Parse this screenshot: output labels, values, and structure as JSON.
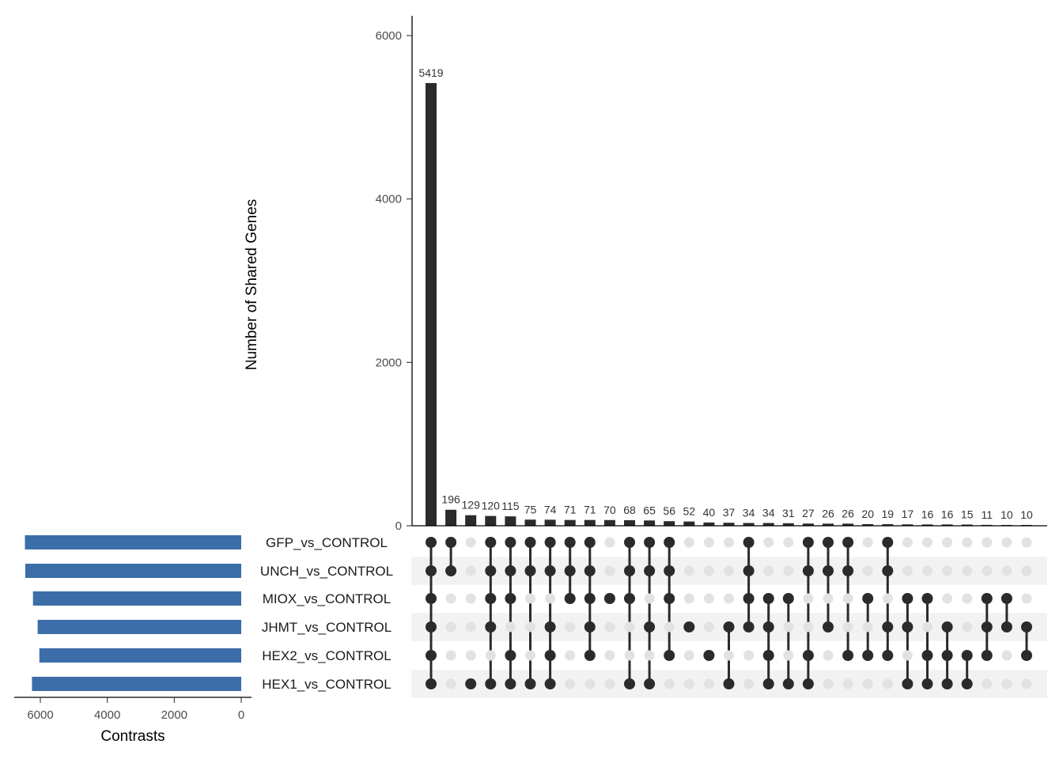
{
  "chart_data": {
    "type": "upset",
    "ylabel": "Number of Shared Genes",
    "xlabel_sets": "Contrasts",
    "ylim": [
      0,
      6000
    ],
    "y_ticks": [
      0,
      2000,
      4000,
      6000
    ],
    "set_size_ticks": [
      6000,
      4000,
      2000,
      0
    ],
    "set_size_lim": [
      0,
      6600
    ],
    "sets": [
      "GFP_vs_CONTROL",
      "UNCH_vs_CONTROL",
      "MIOX_vs_CONTROL",
      "JHMT_vs_CONTROL",
      "HEX2_vs_CONTROL",
      "HEX1_vs_CONTROL"
    ],
    "set_sizes": [
      6460,
      6450,
      6220,
      6080,
      6030,
      6250
    ],
    "intersections": [
      {
        "value": 5419,
        "members": [
          0,
          1,
          2,
          3,
          4,
          5
        ]
      },
      {
        "value": 196,
        "members": [
          0,
          1
        ]
      },
      {
        "value": 129,
        "members": [
          5
        ]
      },
      {
        "value": 120,
        "members": [
          0,
          1,
          2,
          3,
          5
        ]
      },
      {
        "value": 115,
        "members": [
          0,
          1,
          2,
          4,
          5
        ]
      },
      {
        "value": 75,
        "members": [
          0,
          1,
          5
        ]
      },
      {
        "value": 74,
        "members": [
          0,
          1,
          3,
          4,
          5
        ]
      },
      {
        "value": 71,
        "members": [
          0,
          1,
          2
        ]
      },
      {
        "value": 71,
        "members": [
          0,
          1,
          2,
          3,
          4
        ]
      },
      {
        "value": 70,
        "members": [
          2
        ]
      },
      {
        "value": 68,
        "members": [
          0,
          1,
          2,
          5
        ]
      },
      {
        "value": 65,
        "members": [
          0,
          1,
          3,
          5
        ]
      },
      {
        "value": 56,
        "members": [
          0,
          1,
          2,
          4
        ]
      },
      {
        "value": 52,
        "members": [
          3
        ]
      },
      {
        "value": 40,
        "members": [
          4
        ]
      },
      {
        "value": 37,
        "members": [
          3,
          5
        ]
      },
      {
        "value": 34,
        "members": [
          0,
          1,
          2,
          3
        ]
      },
      {
        "value": 34,
        "members": [
          2,
          3,
          4,
          5
        ]
      },
      {
        "value": 31,
        "members": [
          2,
          5
        ]
      },
      {
        "value": 27,
        "members": [
          0,
          1,
          4,
          5
        ]
      },
      {
        "value": 26,
        "members": [
          0,
          1,
          3
        ]
      },
      {
        "value": 26,
        "members": [
          0,
          1,
          4
        ]
      },
      {
        "value": 20,
        "members": [
          2,
          4
        ]
      },
      {
        "value": 19,
        "members": [
          0,
          1,
          3,
          4
        ]
      },
      {
        "value": 17,
        "members": [
          2,
          3,
          5
        ]
      },
      {
        "value": 16,
        "members": [
          2,
          4,
          5
        ]
      },
      {
        "value": 16,
        "members": [
          3,
          4,
          5
        ]
      },
      {
        "value": 15,
        "members": [
          4,
          5
        ]
      },
      {
        "value": 11,
        "members": [
          2,
          3,
          4
        ]
      },
      {
        "value": 10,
        "members": [
          2,
          3
        ]
      },
      {
        "value": 10,
        "members": [
          3,
          4
        ]
      }
    ],
    "colors": {
      "bar": "#2b2b2b",
      "set_bar": "#3b6ea8",
      "dot_active": "#2b2b2b",
      "dot_inactive": "#e2e2e2",
      "stripe": "#f2f2f2"
    }
  }
}
